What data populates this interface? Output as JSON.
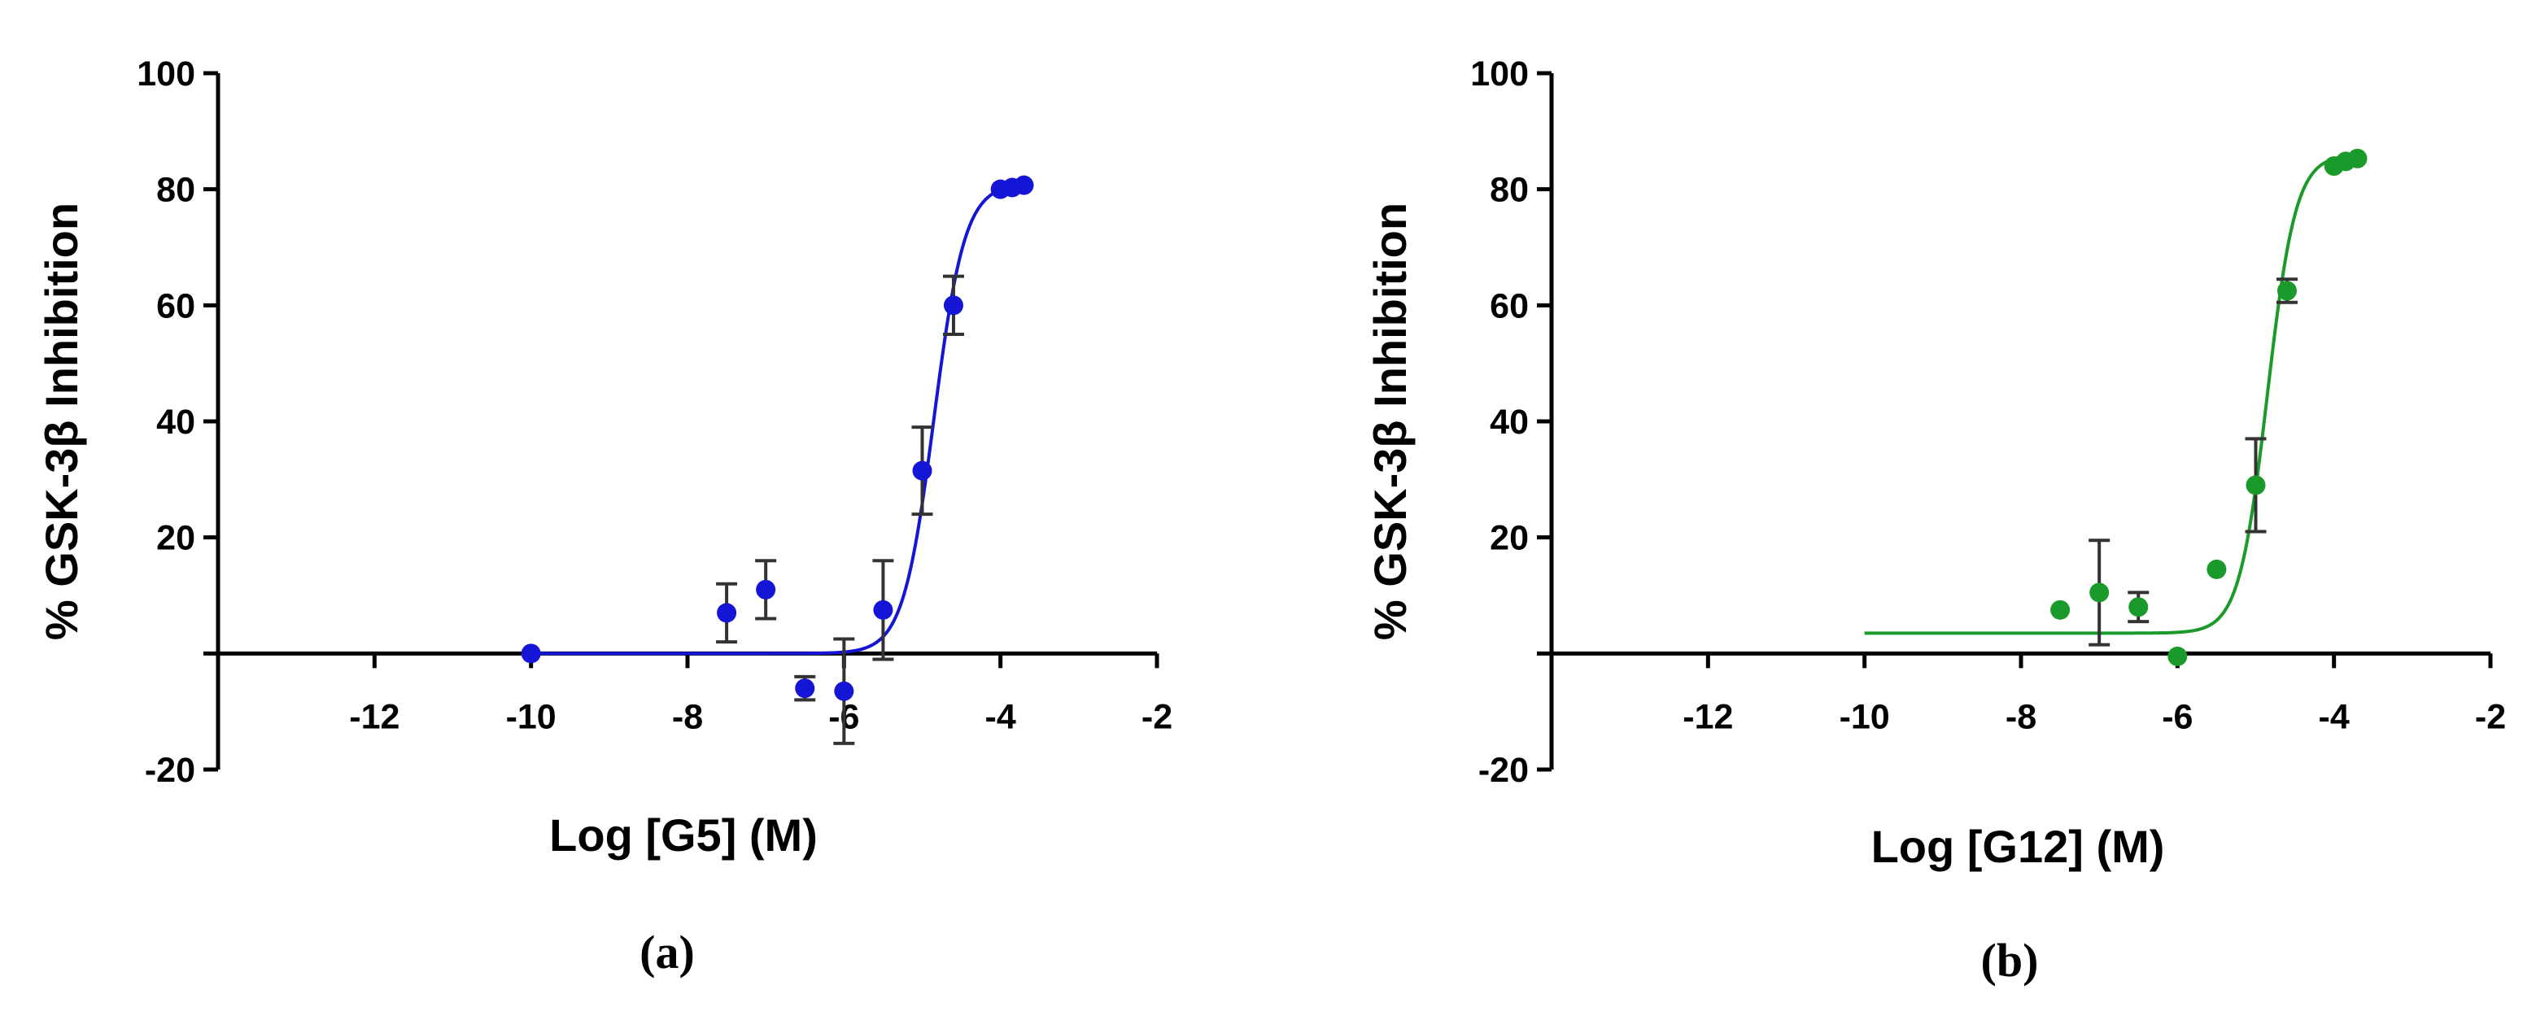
{
  "chart_data": [
    {
      "type": "scatter",
      "panel_label": "(a)",
      "xlabel": "Log [G5] (M)",
      "ylabel": "% GSK-3β Inhibition",
      "xlim": [
        -14,
        -2
      ],
      "ylim": [
        -20,
        100
      ],
      "x_ticks": [
        -12,
        -10,
        -8,
        -6,
        -4,
        -2
      ],
      "x_tick_labels": [
        "-12",
        "-10",
        "-8",
        "-6",
        "-4",
        "-2"
      ],
      "y_ticks": [
        -20,
        20,
        40,
        60,
        80,
        100
      ],
      "y_tick_labels": [
        "-20",
        "20",
        "40",
        "60",
        "80",
        "100"
      ],
      "grid": false,
      "color": "#1515d6",
      "points": [
        {
          "x": -10,
          "y": 0,
          "err": 0
        },
        {
          "x": -7.5,
          "y": 7,
          "err": 5
        },
        {
          "x": -7,
          "y": 11,
          "err": 5
        },
        {
          "x": -6.5,
          "y": -6,
          "err": 2
        },
        {
          "x": -6,
          "y": -6.5,
          "err": 9
        },
        {
          "x": -5.5,
          "y": 7.5,
          "err": 8.5
        },
        {
          "x": -5,
          "y": 31.5,
          "err": 7.5
        },
        {
          "x": -4.6,
          "y": 60,
          "err": 5
        },
        {
          "x": -4,
          "y": 80,
          "err": 0
        },
        {
          "x": -3.85,
          "y": 80.3,
          "err": 0
        },
        {
          "x": -3.7,
          "y": 80.7,
          "err": 0
        }
      ],
      "fit": {
        "x_from": -10,
        "x_to": -3.7,
        "bottom": 0,
        "top": 81,
        "logIC50": -4.85,
        "hill": 2.2
      }
    },
    {
      "type": "scatter",
      "panel_label": "(b)",
      "xlabel": "Log [G12] (M)",
      "ylabel": "% GSK-3β Inhibition",
      "xlim": [
        -14,
        -2
      ],
      "ylim": [
        -20,
        100
      ],
      "x_ticks": [
        -12,
        -10,
        -8,
        -6,
        -4,
        -2
      ],
      "x_tick_labels": [
        "-12",
        "-10",
        "-8",
        "-6",
        "-4",
        "-2"
      ],
      "y_ticks": [
        -20,
        20,
        40,
        60,
        80,
        100
      ],
      "y_tick_labels": [
        "-20",
        "20",
        "40",
        "60",
        "80",
        "100"
      ],
      "grid": false,
      "color": "#1a9a2a",
      "points": [
        {
          "x": -7.5,
          "y": 7.5,
          "err": 0
        },
        {
          "x": -7,
          "y": 10.5,
          "err": 9
        },
        {
          "x": -6.5,
          "y": 8,
          "err": 2.5
        },
        {
          "x": -6,
          "y": -0.5,
          "err": 0
        },
        {
          "x": -5.5,
          "y": 14.5,
          "err": 0
        },
        {
          "x": -5,
          "y": 29,
          "err": 8
        },
        {
          "x": -4.6,
          "y": 62.5,
          "err": 2
        },
        {
          "x": -4,
          "y": 84,
          "err": 0
        },
        {
          "x": -3.85,
          "y": 84.8,
          "err": 0
        },
        {
          "x": -3.7,
          "y": 85.3,
          "err": 0
        }
      ],
      "fit": {
        "x_from": -10,
        "x_to": -3.7,
        "bottom": 3.5,
        "top": 86,
        "logIC50": -4.85,
        "hill": 2.4
      }
    }
  ]
}
